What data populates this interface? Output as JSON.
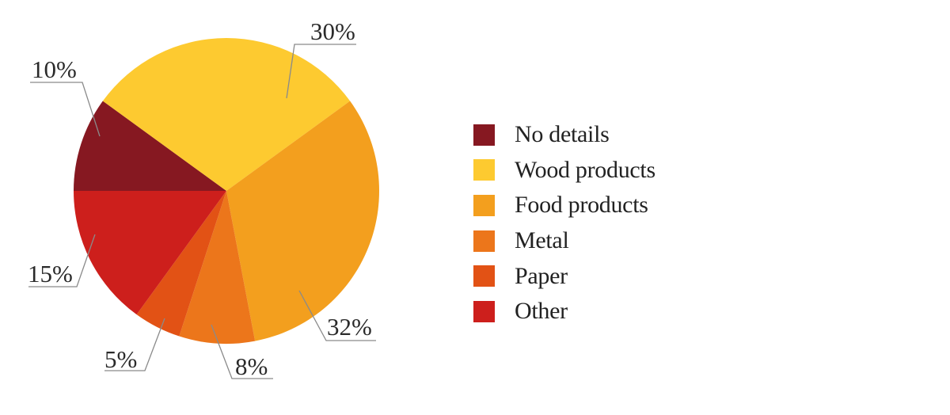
{
  "chart_data": {
    "type": "pie",
    "title": "",
    "start_angle": "9 o'clock, clockwise",
    "legend_position": "right",
    "slices": [
      {
        "name": "No details",
        "value": 10,
        "label": "10%",
        "color": "#861821"
      },
      {
        "name": "Wood products",
        "value": 30,
        "label": "30%",
        "color": "#FDCA30"
      },
      {
        "name": "Food products",
        "value": 32,
        "label": "32%",
        "color": "#F39F1E"
      },
      {
        "name": "Metal",
        "value": 8,
        "label": "8%",
        "color": "#EC761B"
      },
      {
        "name": "Paper",
        "value": 5,
        "label": "5%",
        "color": "#E25215"
      },
      {
        "name": "Other",
        "value": 15,
        "label": "15%",
        "color": "#CD1F1C"
      }
    ]
  }
}
